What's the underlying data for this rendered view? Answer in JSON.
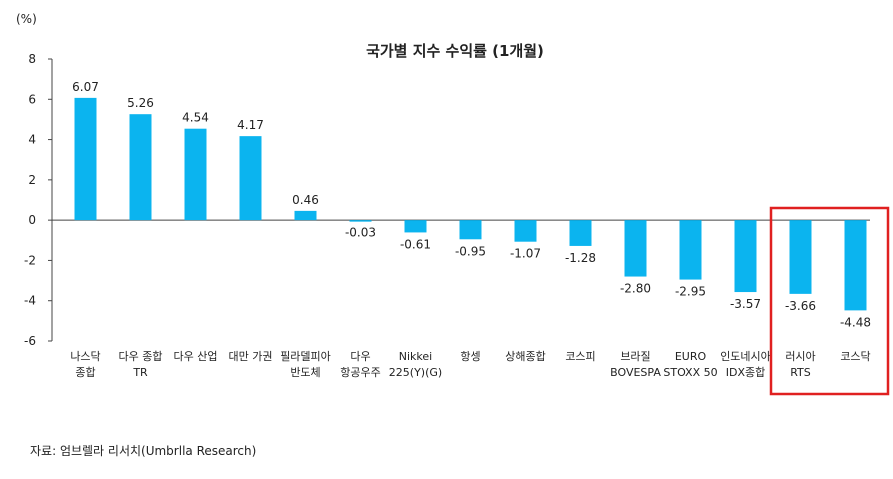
{
  "chart_data": {
    "type": "bar",
    "title": "국가별 지수 수익률 (1개월)",
    "unit_label": "(%)",
    "ylim": [
      -6,
      8
    ],
    "yticks": [
      "8",
      "6",
      "4",
      "2",
      "0",
      "-2",
      "-4",
      "-6"
    ],
    "ytick_values": [
      8,
      6,
      4,
      2,
      0,
      -2,
      -4,
      -6
    ],
    "grid": false,
    "bar_color": "#0bb4ef",
    "highlight_color": "#e02020",
    "highlighted_categories": [
      "러시아 RTS",
      "코스닥"
    ],
    "categories": [
      [
        "나스닥",
        "종합"
      ],
      [
        "다우 종합",
        "TR"
      ],
      [
        "다우 산업"
      ],
      [
        "대만 가권"
      ],
      [
        "필라델피아",
        "반도체"
      ],
      [
        "다우",
        "항공우주"
      ],
      [
        "Nikkei",
        "225(Y)(G)"
      ],
      [
        "항셍"
      ],
      [
        "상해종합"
      ],
      [
        "코스피"
      ],
      [
        "브라질",
        "BOVESPA"
      ],
      [
        "EURO",
        "STOXX 50"
      ],
      [
        "인도네시아",
        "IDX종합"
      ],
      [
        "러시아",
        "RTS"
      ],
      [
        "코스닥"
      ]
    ],
    "values": [
      6.07,
      5.26,
      4.54,
      4.17,
      0.46,
      -0.03,
      -0.61,
      -0.95,
      -1.07,
      -1.28,
      -2.8,
      -2.95,
      -3.57,
      -3.66,
      -4.48
    ],
    "value_labels": [
      "6.07",
      "5.26",
      "4.54",
      "4.17",
      "0.46",
      "-0.03",
      "-0.61",
      "-0.95",
      "-1.07",
      "-1.28",
      "-2.80",
      "-2.95",
      "-3.57",
      "-3.66",
      "-4.48"
    ]
  },
  "source": "자료: 엄브렐라 리서치(Umbrlla Research)"
}
